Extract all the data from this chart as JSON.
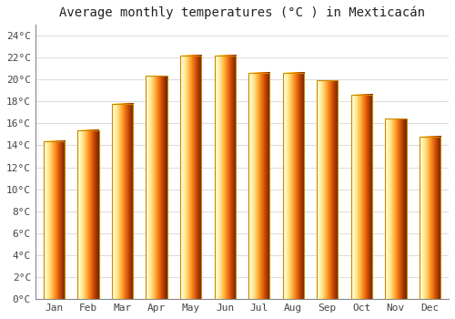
{
  "title": "Average monthly temperatures (°C ) in Mexticacán",
  "months": [
    "Jan",
    "Feb",
    "Mar",
    "Apr",
    "May",
    "Jun",
    "Jul",
    "Aug",
    "Sep",
    "Oct",
    "Nov",
    "Dec"
  ],
  "values": [
    14.4,
    15.4,
    17.8,
    20.3,
    22.2,
    22.2,
    20.6,
    20.6,
    19.9,
    18.6,
    16.4,
    14.8
  ],
  "bar_color_left": "#FFE082",
  "bar_color_right": "#FFA000",
  "bar_edge_color": "#CC8800",
  "background_color": "#FFFFFF",
  "grid_color": "#DDDDDD",
  "ytick_labels": [
    "0°C",
    "2°C",
    "4°C",
    "6°C",
    "8°C",
    "10°C",
    "12°C",
    "14°C",
    "16°C",
    "18°C",
    "20°C",
    "22°C",
    "24°C"
  ],
  "ytick_values": [
    0,
    2,
    4,
    6,
    8,
    10,
    12,
    14,
    16,
    18,
    20,
    22,
    24
  ],
  "ylim": [
    0,
    25
  ],
  "title_fontsize": 10,
  "tick_fontsize": 8,
  "tick_font": "monospace"
}
